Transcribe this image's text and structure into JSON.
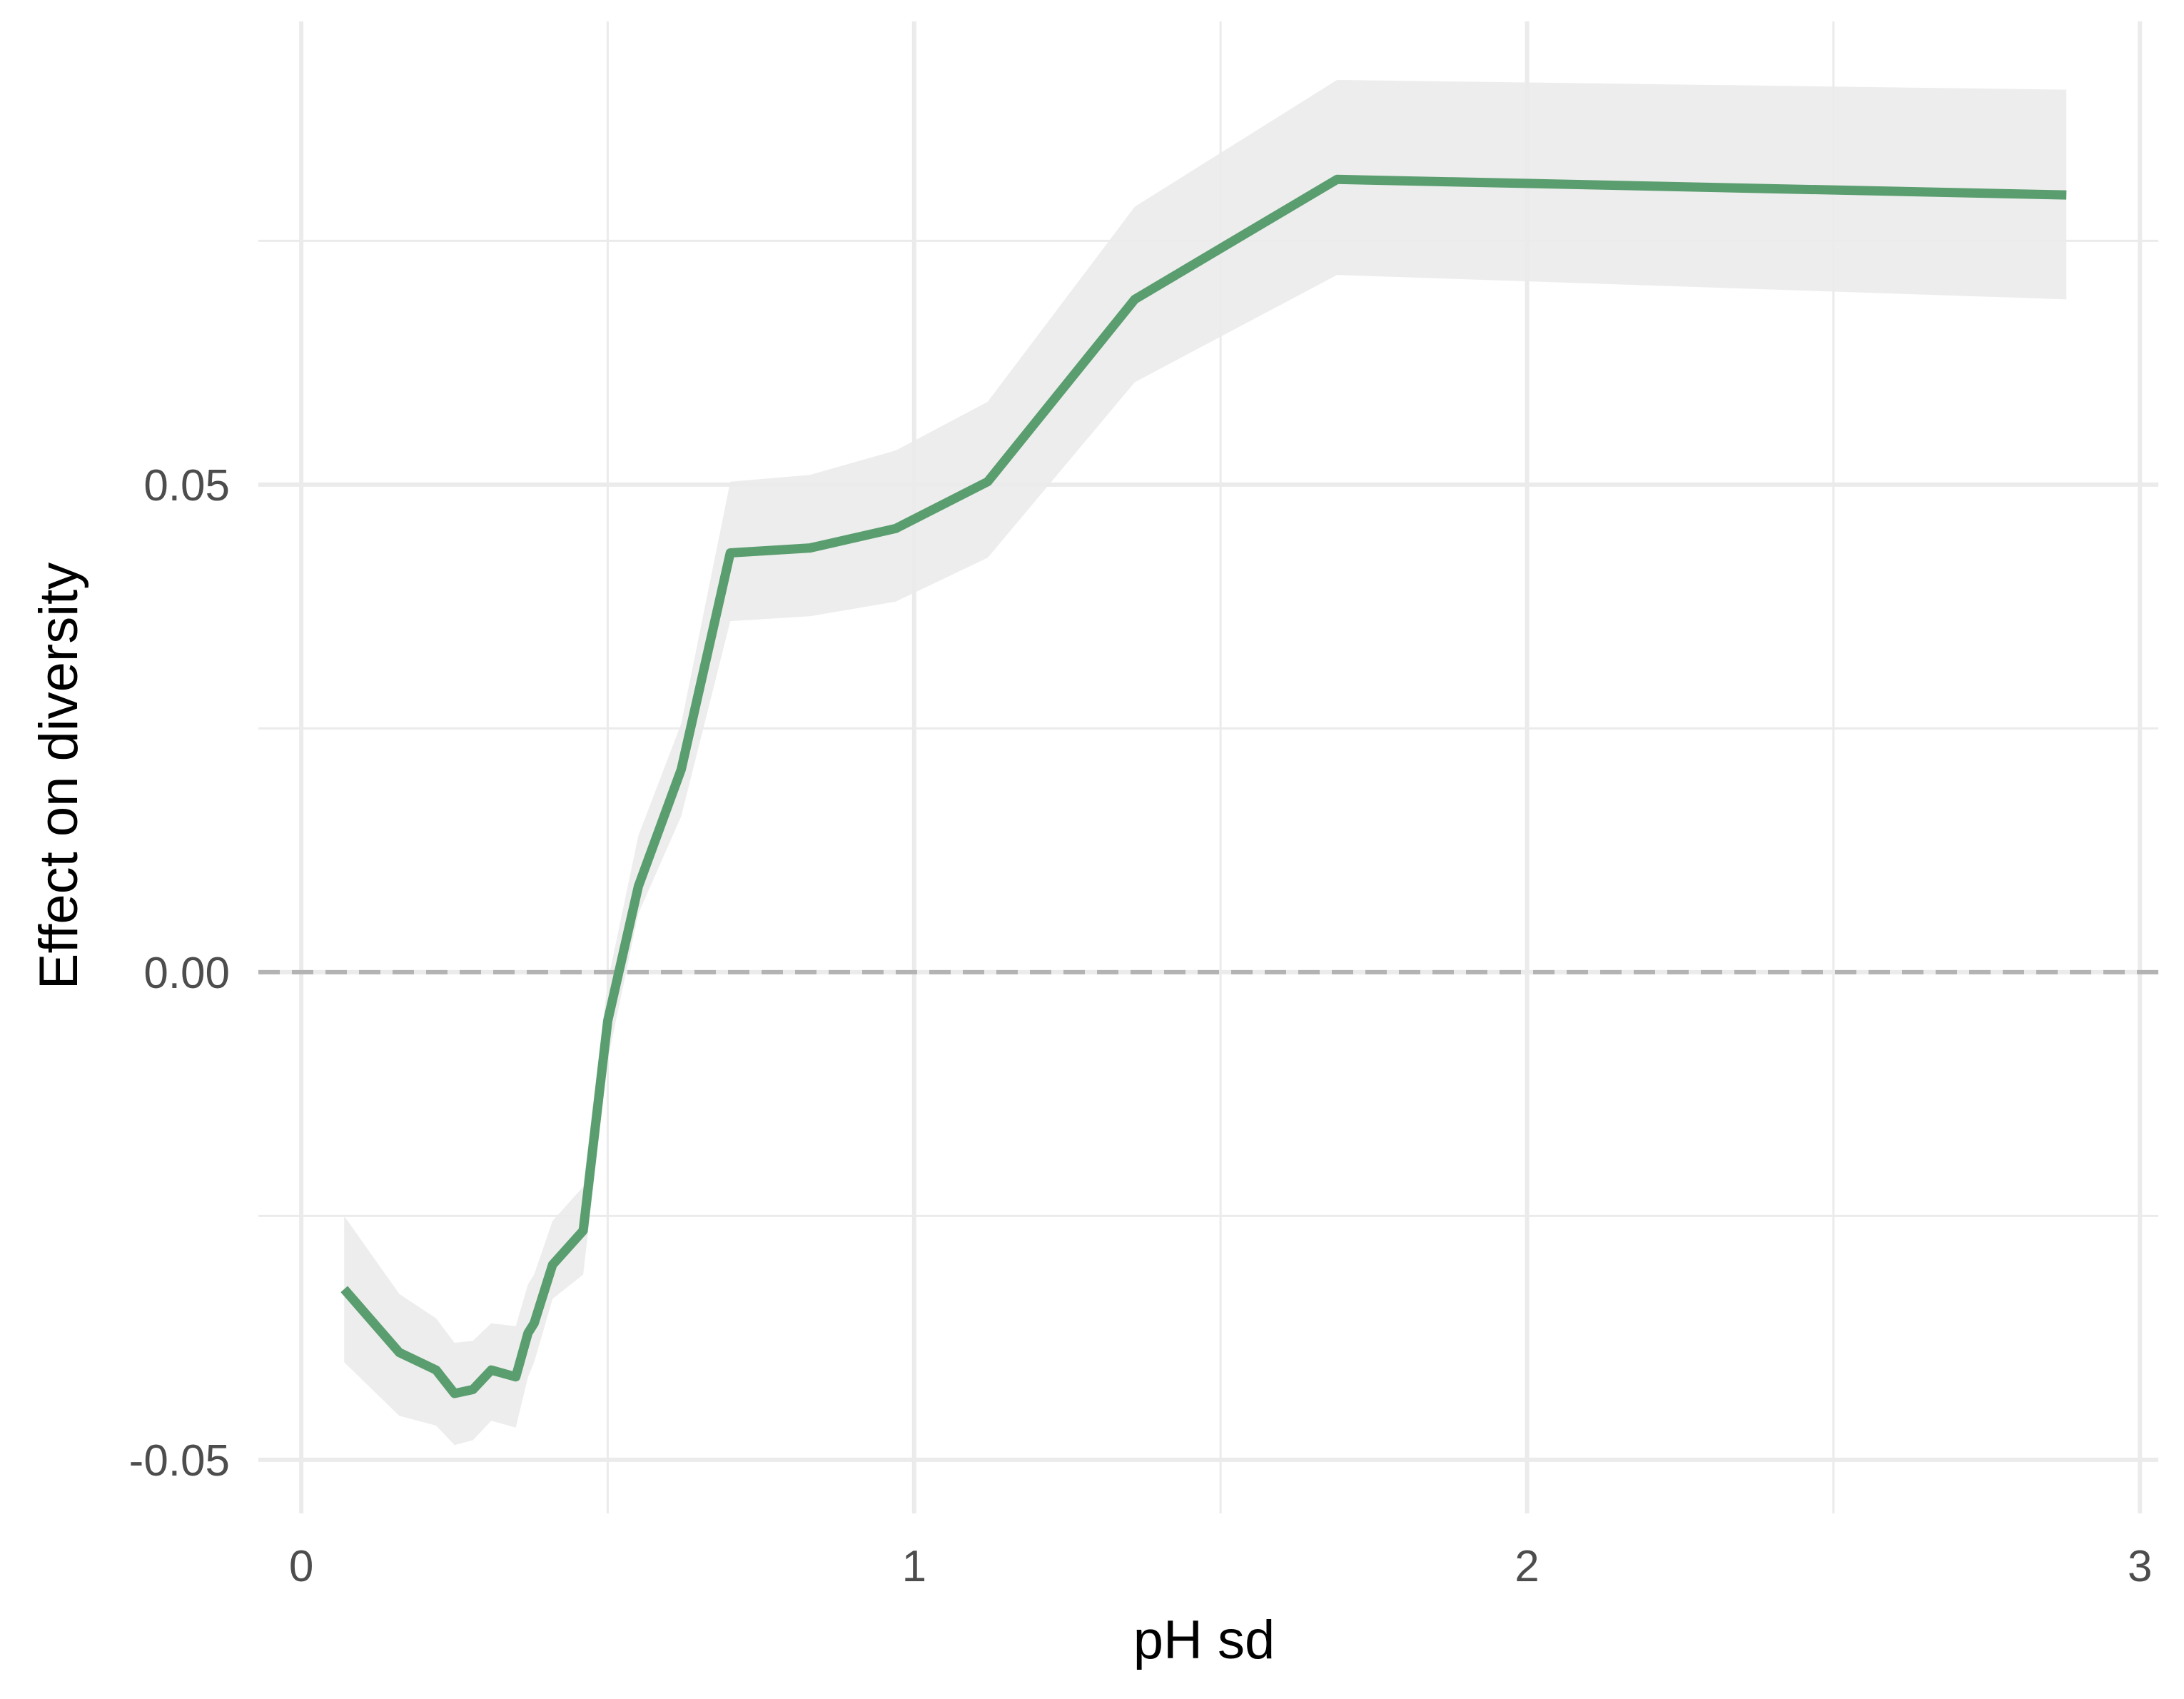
{
  "chart_data": {
    "type": "line",
    "title": "",
    "xlabel": "pH sd",
    "ylabel": "Effect on diversity",
    "xlim": [
      -0.07,
      3.03
    ],
    "ylim": [
      -0.0555,
      0.0975
    ],
    "x_ticks": [
      0,
      1,
      2,
      3
    ],
    "x_tick_labels": [
      "0",
      "1",
      "2",
      "3"
    ],
    "x_minor_grid": [
      0.5,
      1.5,
      2.5
    ],
    "y_ticks": [
      -0.05,
      0.0,
      0.05
    ],
    "y_tick_labels": [
      "-0.05",
      "0.00",
      "0.05"
    ],
    "y_minor_grid": [
      -0.025,
      0.025,
      0.075
    ],
    "grid": true,
    "legend": "none",
    "reference_line": {
      "y": 0.0,
      "style": "dashed",
      "color": "#b3b3b3"
    },
    "colors": {
      "line": "#5a9e6f",
      "ribbon": "#ebebeb",
      "grid": "#ebebeb"
    },
    "series": [
      {
        "x": [
          0.07,
          0.16,
          0.22,
          0.25,
          0.28,
          0.31,
          0.35,
          0.37,
          0.38,
          0.41,
          0.46,
          0.5,
          0.55,
          0.62,
          0.7,
          0.83,
          0.97,
          1.12,
          1.36,
          1.69,
          2.88
        ],
        "y": [
          -0.0325,
          -0.039,
          -0.0408,
          -0.0432,
          -0.0428,
          -0.0408,
          -0.0415,
          -0.037,
          -0.036,
          -0.03,
          -0.0265,
          -0.005,
          0.0088,
          0.0208,
          0.043,
          0.0435,
          0.0455,
          0.0503,
          0.069,
          0.0813,
          0.0797
        ],
        "lower": [
          -0.04,
          -0.0455,
          -0.0465,
          -0.0485,
          -0.048,
          -0.046,
          -0.0467,
          -0.0415,
          -0.04,
          -0.0335,
          -0.031,
          -0.009,
          0.006,
          0.016,
          0.036,
          0.0365,
          0.038,
          0.0425,
          0.0605,
          0.0715,
          0.069
        ],
        "upper": [
          -0.025,
          -0.033,
          -0.0355,
          -0.038,
          -0.0378,
          -0.036,
          -0.0363,
          -0.032,
          -0.031,
          -0.0255,
          -0.022,
          -0.001,
          0.014,
          0.0255,
          0.0503,
          0.051,
          0.0535,
          0.0585,
          0.0785,
          0.0915,
          0.0905
        ]
      }
    ]
  }
}
